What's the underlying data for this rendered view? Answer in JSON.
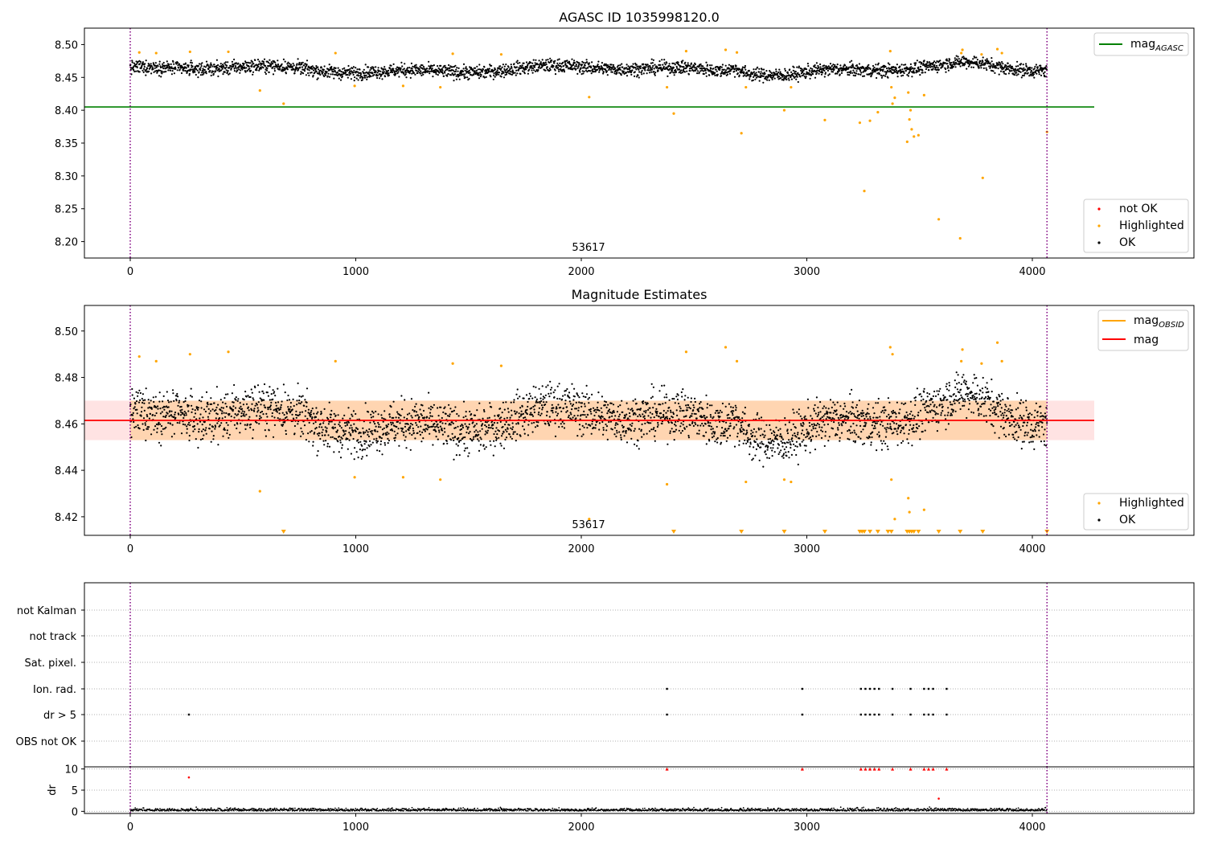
{
  "chart_data": [
    {
      "type": "scatter",
      "title": "AGASC ID 1035998120.0",
      "xlim": [
        -200,
        4720
      ],
      "ylim": [
        8.175,
        8.525
      ],
      "yticks": [
        "8.50",
        "8.45",
        "8.40",
        "8.35",
        "8.30",
        "8.25",
        "8.20"
      ],
      "xticks": [
        "0",
        "1000",
        "2000",
        "3000",
        "4000"
      ],
      "obsid_label": "53617",
      "obs_boundaries": [
        0,
        4065
      ],
      "mag_agasc": 8.405,
      "ok_band": {
        "center": 8.462,
        "spread": 0.011,
        "x_range": [
          0,
          4065
        ]
      },
      "highlighted": [
        [
          40,
          8.488
        ],
        [
          115,
          8.487
        ],
        [
          265,
          8.489
        ],
        [
          435,
          8.489
        ],
        [
          575,
          8.43
        ],
        [
          680,
          8.41
        ],
        [
          910,
          8.487
        ],
        [
          995,
          8.437
        ],
        [
          1210,
          8.437
        ],
        [
          1375,
          8.435
        ],
        [
          1430,
          8.486
        ],
        [
          1645,
          8.485
        ],
        [
          2035,
          8.42
        ],
        [
          2380,
          8.435
        ],
        [
          2410,
          8.395
        ],
        [
          2465,
          8.49
        ],
        [
          2640,
          8.492
        ],
        [
          2690,
          8.488
        ],
        [
          2710,
          8.365
        ],
        [
          2730,
          8.435
        ],
        [
          2900,
          8.4
        ],
        [
          2930,
          8.435
        ],
        [
          3080,
          8.385
        ],
        [
          3235,
          8.381
        ],
        [
          3255,
          8.277
        ],
        [
          3280,
          8.384
        ],
        [
          3315,
          8.397
        ],
        [
          3370,
          8.49
        ],
        [
          3375,
          8.435
        ],
        [
          3380,
          8.41
        ],
        [
          3390,
          8.419
        ],
        [
          3445,
          8.352
        ],
        [
          3450,
          8.427
        ],
        [
          3455,
          8.386
        ],
        [
          3460,
          8.4
        ],
        [
          3465,
          8.371
        ],
        [
          3475,
          8.36
        ],
        [
          3495,
          8.362
        ],
        [
          3520,
          8.423
        ],
        [
          3585,
          8.234
        ],
        [
          3680,
          8.205
        ],
        [
          3685,
          8.487
        ],
        [
          3690,
          8.492
        ],
        [
          3775,
          8.485
        ],
        [
          3780,
          8.297
        ],
        [
          3845,
          8.493
        ],
        [
          3865,
          8.487
        ],
        [
          4065,
          8.367
        ]
      ],
      "legend": [
        "mag",
        "AGASC",
        "not OK",
        "Highlighted",
        "OK"
      ]
    },
    {
      "type": "scatter",
      "title": "Magnitude Estimates",
      "xlim": [
        -200,
        4720
      ],
      "ylim": [
        8.412,
        8.511
      ],
      "yticks": [
        "8.50",
        "8.48",
        "8.46",
        "8.44",
        "8.42"
      ],
      "xticks": [
        "0",
        "1000",
        "2000",
        "3000",
        "4000"
      ],
      "obsid_label": "53617",
      "obs_boundaries": [
        0,
        4065
      ],
      "mag": 8.4615,
      "mag_band": [
        8.453,
        8.47
      ],
      "highlighted": [
        [
          40,
          8.489
        ],
        [
          115,
          8.487
        ],
        [
          265,
          8.49
        ],
        [
          435,
          8.491
        ],
        [
          575,
          8.431
        ],
        [
          910,
          8.487
        ],
        [
          995,
          8.437
        ],
        [
          1210,
          8.437
        ],
        [
          1375,
          8.436
        ],
        [
          1430,
          8.486
        ],
        [
          1645,
          8.485
        ],
        [
          2035,
          8.419
        ],
        [
          2380,
          8.434
        ],
        [
          2465,
          8.491
        ],
        [
          2640,
          8.493
        ],
        [
          2690,
          8.487
        ],
        [
          2730,
          8.435
        ],
        [
          2900,
          8.436
        ],
        [
          2930,
          8.435
        ],
        [
          3370,
          8.493
        ],
        [
          3375,
          8.436
        ],
        [
          3380,
          8.49
        ],
        [
          3390,
          8.419
        ],
        [
          3450,
          8.428
        ],
        [
          3455,
          8.422
        ],
        [
          3520,
          8.423
        ],
        [
          3685,
          8.487
        ],
        [
          3690,
          8.492
        ],
        [
          3775,
          8.486
        ],
        [
          3845,
          8.495
        ],
        [
          3865,
          8.487
        ]
      ],
      "below_range": [
        680,
        2410,
        2710,
        2900,
        3080,
        3235,
        3245,
        3255,
        3280,
        3315,
        3360,
        3375,
        3445,
        3455,
        3465,
        3475,
        3495,
        3585,
        3680,
        3780,
        4065
      ],
      "legend": [
        "mag",
        "OBSID",
        "mag",
        "Highlighted",
        "OK"
      ]
    },
    {
      "type": "scatter",
      "title": "",
      "xlim": [
        -200,
        4720
      ],
      "flags": [
        "not Kalman",
        "not track",
        "Sat. pixel.",
        "Ion. rad.",
        "dr > 5",
        "OBS not OK"
      ],
      "flag_points": {
        "Ion. rad.": [
          2380,
          2980,
          3240,
          3260,
          3280,
          3300,
          3320,
          3380,
          3460,
          3520,
          3540,
          3560,
          3620
        ],
        "dr > 5": [
          260,
          2380,
          2980,
          3240,
          3260,
          3280,
          3300,
          3320,
          3380,
          3460,
          3520,
          3540,
          3560,
          3620
        ]
      },
      "obs_boundaries": [
        0,
        4065
      ]
    },
    {
      "type": "scatter",
      "title": "",
      "xlim": [
        -200,
        4720
      ],
      "ylim": [
        -0.5,
        10.5
      ],
      "ylabel": "dr",
      "yticks": [
        "10",
        "5",
        "0"
      ],
      "xticks": [
        "0",
        "1000",
        "2000",
        "3000",
        "4000"
      ],
      "capped_points": [
        2380,
        2980,
        3240,
        3260,
        3280,
        3300,
        3320,
        3380,
        3460,
        3520,
        3540,
        3560,
        3620
      ],
      "flagged_points": [
        [
          260,
          8
        ],
        [
          3585,
          3
        ]
      ],
      "obs_boundaries": [
        0,
        4065
      ]
    }
  ]
}
